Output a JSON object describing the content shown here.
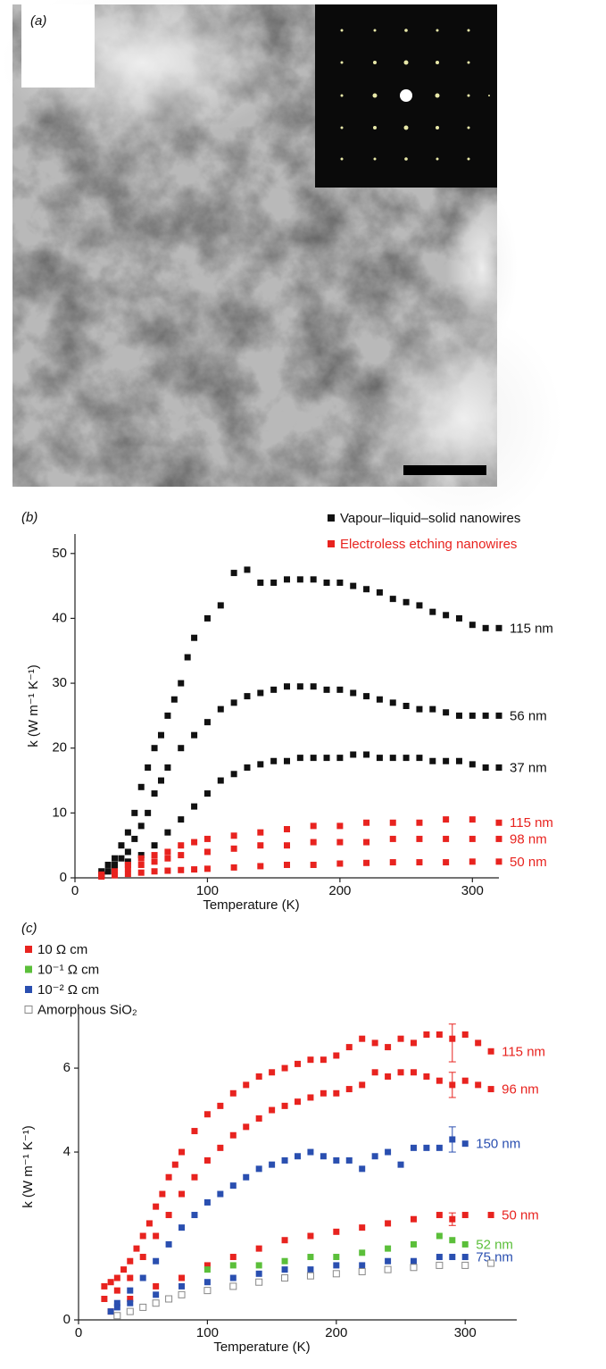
{
  "panel_a": {
    "label": "(a)"
  },
  "chart_data": [
    {
      "type": "scatter",
      "panel_label": "(b)",
      "x_label": "Temperature (K)",
      "y_label": "k (W m⁻¹ K⁻¹)",
      "xlim": [
        0,
        320
      ],
      "ylim": [
        0,
        53
      ],
      "xticks": [
        0,
        100,
        200,
        300
      ],
      "yticks": [
        0,
        10,
        20,
        30,
        40,
        50
      ],
      "legend": "upper right",
      "series": [
        {
          "name": "Vapour–liquid–solid nanowires",
          "color": "#111111",
          "curves": [
            {
              "label": "115 nm",
              "x": [
                20,
                25,
                30,
                35,
                40,
                45,
                50,
                55,
                60,
                65,
                70,
                75,
                80,
                85,
                90,
                100,
                110,
                120,
                130,
                140,
                150,
                160,
                170,
                180,
                190,
                200,
                210,
                220,
                230,
                240,
                250,
                260,
                270,
                280,
                290,
                300,
                310,
                320
              ],
              "values": [
                1,
                2,
                3,
                5,
                7,
                10,
                14,
                17,
                20,
                22,
                25,
                27.5,
                30,
                34,
                37,
                40,
                42,
                47,
                47.5,
                45.5,
                45.5,
                46,
                46,
                46,
                45.5,
                45.5,
                45,
                44.5,
                44,
                43,
                42.5,
                42,
                41,
                40.5,
                40,
                39,
                38.5,
                38.5
              ]
            },
            {
              "label": "56 nm",
              "x": [
                20,
                25,
                30,
                35,
                40,
                45,
                50,
                55,
                60,
                65,
                70,
                80,
                90,
                100,
                110,
                120,
                130,
                140,
                150,
                160,
                170,
                180,
                190,
                200,
                210,
                220,
                230,
                240,
                250,
                260,
                270,
                280,
                290,
                300,
                310,
                320
              ],
              "values": [
                0.5,
                1,
                2,
                3,
                4,
                6,
                8,
                10,
                13,
                15,
                17,
                20,
                22,
                24,
                26,
                27,
                28,
                28.5,
                29,
                29.5,
                29.5,
                29.5,
                29,
                29,
                28.5,
                28,
                27.5,
                27,
                26.5,
                26,
                26,
                25.5,
                25,
                25,
                25,
                25
              ]
            },
            {
              "label": "37 nm",
              "x": [
                20,
                25,
                30,
                40,
                50,
                60,
                70,
                80,
                90,
                100,
                110,
                120,
                130,
                140,
                150,
                160,
                170,
                180,
                190,
                200,
                210,
                220,
                230,
                240,
                250,
                260,
                270,
                280,
                290,
                300,
                310,
                320
              ],
              "values": [
                0.5,
                1,
                1.5,
                2.5,
                3.5,
                5,
                7,
                9,
                11,
                13,
                15,
                16,
                17,
                17.5,
                18,
                18,
                18.5,
                18.5,
                18.5,
                18.5,
                19,
                19,
                18.5,
                18.5,
                18.5,
                18.5,
                18,
                18,
                18,
                17.5,
                17,
                17
              ]
            }
          ]
        },
        {
          "name": "Electroless etching nanowires",
          "color": "#e8231f",
          "curves": [
            {
              "label": "115 nm",
              "x": [
                20,
                30,
                40,
                50,
                60,
                70,
                80,
                90,
                100,
                120,
                140,
                160,
                180,
                200,
                220,
                240,
                260,
                280,
                300,
                320
              ],
              "values": [
                0.5,
                1,
                2,
                3,
                3.5,
                4,
                5,
                5.5,
                6,
                6.5,
                7,
                7.5,
                8,
                8,
                8.5,
                8.5,
                8.5,
                9,
                9,
                8.5
              ]
            },
            {
              "label": "98 nm",
              "x": [
                20,
                30,
                40,
                50,
                60,
                70,
                80,
                100,
                120,
                140,
                160,
                180,
                200,
                220,
                240,
                260,
                280,
                300,
                320
              ],
              "values": [
                0.3,
                0.8,
                1.5,
                2,
                2.5,
                3,
                3.5,
                4,
                4.5,
                5,
                5,
                5.5,
                5.5,
                5.5,
                6,
                6,
                6,
                6,
                6
              ]
            },
            {
              "label": "50 nm",
              "x": [
                20,
                30,
                40,
                50,
                60,
                70,
                80,
                90,
                100,
                120,
                140,
                160,
                180,
                200,
                220,
                240,
                260,
                280,
                300,
                320
              ],
              "values": [
                0.2,
                0.4,
                0.6,
                0.8,
                1,
                1.1,
                1.2,
                1.3,
                1.4,
                1.6,
                1.8,
                2,
                2,
                2.2,
                2.3,
                2.4,
                2.4,
                2.4,
                2.5,
                2.5
              ]
            }
          ]
        }
      ]
    },
    {
      "type": "scatter",
      "panel_label": "(c)",
      "x_label": "Temperature (K)",
      "y_label": "k (W m⁻¹ K⁻¹)",
      "xlim": [
        0,
        340
      ],
      "ylim": [
        0,
        7.3
      ],
      "xticks": [
        0,
        100,
        200,
        300
      ],
      "yticks": [
        0,
        4,
        6
      ],
      "legend": "upper left",
      "series": [
        {
          "name": "10 Ω cm",
          "color": "#e8231f",
          "curves": [
            {
              "label": "115 nm",
              "x": [
                20,
                25,
                30,
                35,
                40,
                45,
                50,
                55,
                60,
                65,
                70,
                75,
                80,
                90,
                100,
                110,
                120,
                130,
                140,
                150,
                160,
                170,
                180,
                190,
                200,
                210,
                220,
                230,
                240,
                250,
                260,
                270,
                280,
                290,
                300,
                310,
                320
              ],
              "values": [
                0.8,
                0.9,
                1,
                1.2,
                1.4,
                1.7,
                2,
                2.3,
                2.7,
                3,
                3.4,
                3.7,
                4,
                4.5,
                4.9,
                5.1,
                5.4,
                5.6,
                5.8,
                5.9,
                6,
                6.1,
                6.2,
                6.2,
                6.3,
                6.5,
                6.7,
                6.6,
                6.5,
                6.7,
                6.6,
                6.8,
                6.8,
                6.7,
                6.8,
                6.6,
                6.4
              ],
              "errorbar": {
                "x": 290,
                "value": 6.6,
                "error": 0.45
              }
            },
            {
              "label": "96 nm",
              "x": [
                20,
                30,
                40,
                50,
                60,
                70,
                80,
                90,
                100,
                110,
                120,
                130,
                140,
                150,
                160,
                170,
                180,
                190,
                200,
                210,
                220,
                230,
                240,
                250,
                260,
                270,
                280,
                290,
                300,
                310,
                320
              ],
              "values": [
                0.5,
                0.7,
                1,
                1.5,
                2,
                2.5,
                3,
                3.4,
                3.8,
                4.1,
                4.4,
                4.6,
                4.8,
                5,
                5.1,
                5.2,
                5.3,
                5.4,
                5.4,
                5.5,
                5.6,
                5.9,
                5.8,
                5.9,
                5.9,
                5.8,
                5.7,
                5.6,
                5.7,
                5.6,
                5.5
              ],
              "errorbar": {
                "x": 290,
                "value": 5.6,
                "error": 0.3
              }
            },
            {
              "label": "50 nm",
              "x": [
                25,
                40,
                60,
                80,
                100,
                120,
                140,
                160,
                180,
                200,
                220,
                240,
                260,
                280,
                290,
                300,
                320
              ],
              "values": [
                0.2,
                0.5,
                0.8,
                1,
                1.3,
                1.5,
                1.7,
                1.9,
                2,
                2.1,
                2.2,
                2.3,
                2.4,
                2.5,
                2.4,
                2.5,
                2.5
              ],
              "errorbar": {
                "x": 290,
                "value": 2.4,
                "error": 0.15
              }
            }
          ]
        },
        {
          "name": "10⁻¹ Ω cm",
          "color": "#5bbf3a",
          "curves": [
            {
              "label": "52 nm",
              "x": [
                100,
                120,
                140,
                160,
                180,
                200,
                220,
                240,
                260,
                280,
                290,
                300
              ],
              "values": [
                1.2,
                1.3,
                1.3,
                1.4,
                1.5,
                1.5,
                1.6,
                1.7,
                1.8,
                2,
                1.9,
                1.8
              ]
            }
          ]
        },
        {
          "name": "10⁻² Ω cm",
          "color": "#2a4fb0",
          "curves": [
            {
              "label": "150 nm",
              "x": [
                25,
                30,
                40,
                50,
                60,
                70,
                80,
                90,
                100,
                110,
                120,
                130,
                140,
                150,
                160,
                170,
                180,
                190,
                200,
                210,
                220,
                230,
                240,
                250,
                260,
                270,
                280,
                290,
                300
              ],
              "values": [
                0.2,
                0.4,
                0.7,
                1,
                1.4,
                1.8,
                2.2,
                2.5,
                2.8,
                3,
                3.2,
                3.4,
                3.6,
                3.7,
                3.8,
                3.9,
                4,
                3.9,
                3.8,
                3.8,
                3.6,
                3.9,
                4,
                3.7,
                4.1,
                4.1,
                4.1,
                4.3,
                4.2
              ],
              "errorbar": {
                "x": 290,
                "value": 4.3,
                "error": 0.3
              }
            },
            {
              "label": "75 nm",
              "x": [
                30,
                40,
                60,
                80,
                100,
                120,
                140,
                160,
                180,
                200,
                220,
                240,
                260,
                280,
                290,
                300
              ],
              "values": [
                0.3,
                0.4,
                0.6,
                0.8,
                0.9,
                1,
                1.1,
                1.2,
                1.2,
                1.3,
                1.3,
                1.4,
                1.4,
                1.5,
                1.5,
                1.5
              ]
            }
          ]
        },
        {
          "name": "Amorphous SiO₂",
          "color": "#888888",
          "open": true,
          "curves": [
            {
              "x": [
                30,
                40,
                50,
                60,
                70,
                80,
                100,
                120,
                140,
                160,
                180,
                200,
                220,
                240,
                260,
                280,
                300,
                320
              ],
              "values": [
                0.1,
                0.2,
                0.3,
                0.4,
                0.5,
                0.6,
                0.7,
                0.8,
                0.9,
                1,
                1.05,
                1.1,
                1.15,
                1.2,
                1.25,
                1.3,
                1.3,
                1.35
              ]
            }
          ]
        }
      ]
    }
  ]
}
